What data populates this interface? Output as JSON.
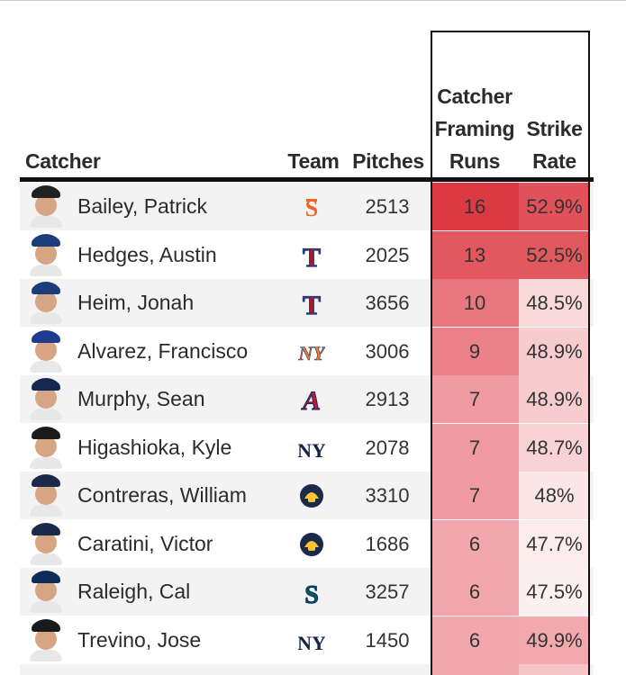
{
  "headers": {
    "catcher": "Catcher",
    "team": "Team",
    "pitches": "Pitches",
    "runs_line1": "Catcher",
    "runs_line2": "Framing",
    "runs_line3": "Runs",
    "rate_line1": "Strike",
    "rate_line2": "Rate"
  },
  "rows": [
    {
      "name": "Bailey, Patrick",
      "team_logo": "giants-logo-icon",
      "pitches": "2513",
      "runs": "16",
      "rate": "52.9%",
      "runs_color": "#dc3a43",
      "rate_color": "#e0515a",
      "cap_color": "#222222"
    },
    {
      "name": "Hedges, Austin",
      "team_logo": "rangers-logo-icon",
      "pitches": "2025",
      "runs": "13",
      "rate": "52.5%",
      "runs_color": "#e25760",
      "rate_color": "#e2585f",
      "cap_color": "#1b3d7a"
    },
    {
      "name": "Heim, Jonah",
      "team_logo": "rangers-logo-icon",
      "pitches": "3656",
      "runs": "10",
      "rate": "48.5%",
      "runs_color": "#e8777e",
      "rate_color": "#f9d9da",
      "cap_color": "#1b3d7a"
    },
    {
      "name": "Alvarez, Francisco",
      "team_logo": "mets-logo-icon",
      "pitches": "3006",
      "runs": "9",
      "rate": "48.9%",
      "runs_color": "#ea8188",
      "rate_color": "#f7ccce",
      "cap_color": "#1d3b8f"
    },
    {
      "name": "Murphy, Sean",
      "team_logo": "braves-logo-icon",
      "pitches": "2913",
      "runs": "7",
      "rate": "48.9%",
      "runs_color": "#ee9aa0",
      "rate_color": "#f7ccce",
      "cap_color": "#13274f"
    },
    {
      "name": "Higashioka, Kyle",
      "team_logo": "yankees-logo-icon",
      "pitches": "2078",
      "runs": "7",
      "rate": "48.7%",
      "runs_color": "#ee9aa0",
      "rate_color": "#f8d2d4",
      "cap_color": "#1a1a1a"
    },
    {
      "name": "Contreras, William",
      "team_logo": "brewers-logo-icon",
      "pitches": "3310",
      "runs": "7",
      "rate": "48%",
      "runs_color": "#ee9aa0",
      "rate_color": "#fbe6e7",
      "cap_color": "#1b2a4a"
    },
    {
      "name": "Caratini, Victor",
      "team_logo": "brewers-logo-icon",
      "pitches": "1686",
      "runs": "6",
      "rate": "47.7%",
      "runs_color": "#f1a7ac",
      "rate_color": "#fcecec",
      "cap_color": "#1b2a4a"
    },
    {
      "name": "Raleigh, Cal",
      "team_logo": "mariners-logo-icon",
      "pitches": "3257",
      "runs": "6",
      "rate": "47.5%",
      "runs_color": "#f1a7ac",
      "rate_color": "#fdf0f0",
      "cap_color": "#0c2c56"
    },
    {
      "name": "Trevino, Jose",
      "team_logo": "yankees-logo-icon",
      "pitches": "1450",
      "runs": "6",
      "rate": "49.9%",
      "runs_color": "#f1a7ac",
      "rate_color": "#f2a9ae",
      "cap_color": "#1a1a1a"
    }
  ]
}
